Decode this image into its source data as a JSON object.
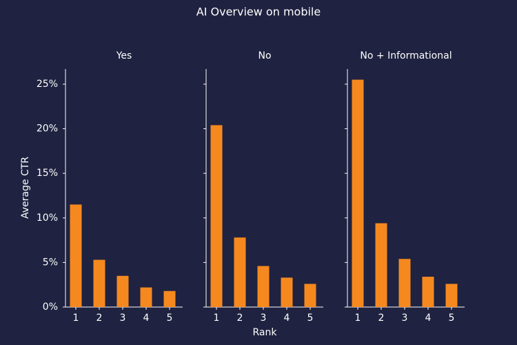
{
  "title": "AI Overview on mobile",
  "xlabel": "Rank",
  "ylabel": "Average CTR",
  "chart_data": [
    {
      "type": "bar",
      "title": "Yes",
      "categories": [
        "1",
        "2",
        "3",
        "4",
        "5"
      ],
      "values": [
        11.5,
        5.3,
        3.5,
        2.2,
        1.8
      ],
      "color": "#f5891f",
      "ylim": [
        0,
        26.7
      ],
      "yticks": [
        {
          "value": 0,
          "label": "0%"
        },
        {
          "value": 5,
          "label": "5%"
        },
        {
          "value": 10,
          "label": "10%"
        },
        {
          "value": 15,
          "label": "15%"
        },
        {
          "value": 20,
          "label": "20%"
        },
        {
          "value": 25,
          "label": "25%"
        }
      ]
    },
    {
      "type": "bar",
      "title": "No",
      "categories": [
        "1",
        "2",
        "3",
        "4",
        "5"
      ],
      "values": [
        20.4,
        7.8,
        4.6,
        3.3,
        2.6
      ],
      "color": "#f5891f"
    },
    {
      "type": "bar",
      "title": "No + Informational",
      "categories": [
        "1",
        "2",
        "3",
        "4",
        "5"
      ],
      "values": [
        25.5,
        9.4,
        5.4,
        3.4,
        2.6
      ],
      "color": "#f5891f"
    }
  ]
}
